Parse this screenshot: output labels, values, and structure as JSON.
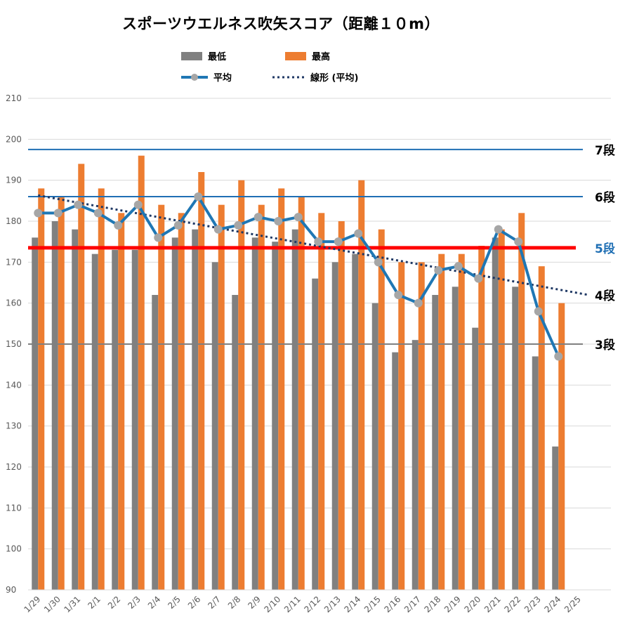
{
  "chart_data": {
    "type": "bar",
    "title": "スポーツウエルネス吹矢スコア（距離１０m）",
    "categories": [
      "1/29",
      "1/30",
      "1/31",
      "2/1",
      "2/2",
      "2/3",
      "2/4",
      "2/5",
      "2/6",
      "2/7",
      "2/8",
      "2/9",
      "2/10",
      "2/11",
      "2/12",
      "2/13",
      "2/14",
      "2/15",
      "2/16",
      "2/17",
      "2/18",
      "2/19",
      "2/20",
      "2/21",
      "2/22",
      "2/23",
      "2/24",
      "2/25"
    ],
    "series": [
      {
        "name": "最低",
        "type": "bar",
        "color": "#808080",
        "values": [
          176,
          180,
          178,
          172,
          173,
          173,
          162,
          176,
          178,
          170,
          162,
          176,
          175,
          178,
          166,
          170,
          172,
          160,
          148,
          151,
          162,
          164,
          154,
          176,
          164,
          147,
          125,
          null
        ]
      },
      {
        "name": "最高",
        "type": "bar",
        "color": "#ED7D31",
        "values": [
          188,
          186,
          194,
          188,
          182,
          196,
          184,
          182,
          192,
          184,
          190,
          184,
          188,
          186,
          182,
          180,
          190,
          178,
          170,
          170,
          172,
          172,
          174,
          178,
          182,
          169,
          160,
          null
        ]
      },
      {
        "name": "平均",
        "type": "line",
        "color": "#1F77B4",
        "values": [
          182,
          182,
          184,
          182,
          179,
          184,
          176,
          179,
          186,
          178,
          179,
          181,
          180,
          181,
          175,
          175,
          177,
          170,
          162,
          160,
          168,
          169,
          166,
          178,
          175,
          158,
          147,
          null
        ]
      },
      {
        "name": "線形 (平均)",
        "type": "trendline",
        "color": "#1F3864",
        "start": [
          0,
          186.3
        ],
        "end": [
          27.5,
          162.0
        ]
      }
    ],
    "ylim": [
      90,
      210
    ],
    "yticks": [
      90,
      100,
      110,
      120,
      130,
      140,
      150,
      160,
      170,
      180,
      190,
      200,
      210
    ],
    "grid": true,
    "legend_position": "top",
    "reference_lines": [
      {
        "label": "7段",
        "value": 197.5,
        "color": "#1F6FB4",
        "label_color": "#000000",
        "width": 2
      },
      {
        "label": "6段",
        "value": 186,
        "color": "#1F6FB4",
        "label_color": "#000000",
        "width": 2
      },
      {
        "label": "5段",
        "value": 173.5,
        "color": "#FF0000",
        "label_color": "#1F6FB4",
        "width": 5
      },
      {
        "label": "4段",
        "value": 162,
        "color": null,
        "label_color": "#000000",
        "width": 0
      },
      {
        "label": "3段",
        "value": 150,
        "color": "#808080",
        "label_color": "#000000",
        "width": 2
      }
    ]
  }
}
